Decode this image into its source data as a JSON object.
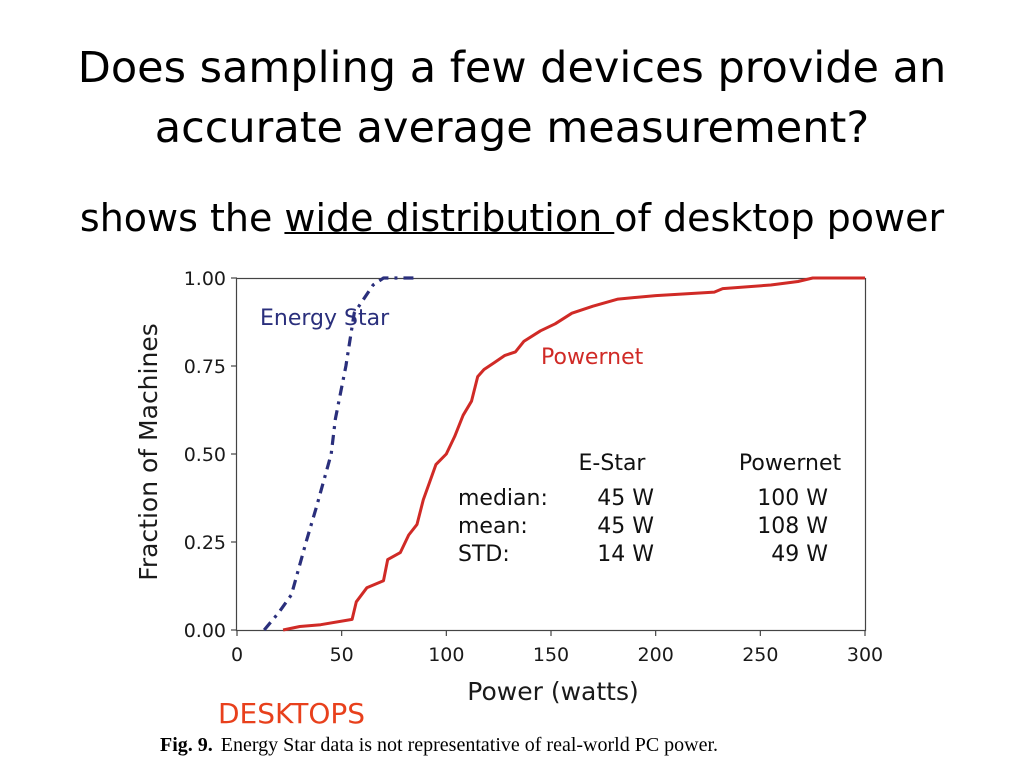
{
  "slide": {
    "title_line1": "Does sampling a few devices provide an",
    "title_line2": "accurate average measurement?",
    "subtitle_pre": "shows the ",
    "subtitle_underlined": "wide distribution ",
    "subtitle_post": "of desktop power",
    "section_label": "DESKTOPS",
    "caption_fig": "Fig. 9.",
    "caption_text": "Energy Star data is not representative of real-world PC power."
  },
  "colors": {
    "energy_star": "#2a2f7c",
    "powernet": "#d02a26",
    "section_label": "#e8401c"
  },
  "chart_data": {
    "type": "line",
    "xlabel": "Power (watts)",
    "ylabel": "Fraction of Machines",
    "xlim": [
      0,
      300
    ],
    "ylim": [
      0,
      1
    ],
    "x_ticks": [
      0,
      50,
      100,
      150,
      200,
      250,
      300
    ],
    "x_tick_labels": [
      "0",
      "50",
      "100",
      "150",
      "200",
      "250",
      "300"
    ],
    "y_ticks": [
      0,
      0.25,
      0.5,
      0.75,
      1.0
    ],
    "y_tick_labels": [
      "0.00",
      "0.25",
      "0.50",
      "0.75",
      "1.00"
    ],
    "grid": false,
    "series": [
      {
        "name": "Energy Star",
        "style": "dash-dot",
        "points": [
          [
            13,
            0
          ],
          [
            20,
            0.05
          ],
          [
            26,
            0.1
          ],
          [
            33,
            0.25
          ],
          [
            38,
            0.35
          ],
          [
            45,
            0.5
          ],
          [
            47,
            0.6
          ],
          [
            52,
            0.75
          ],
          [
            56,
            0.9
          ],
          [
            65,
            0.98
          ],
          [
            70,
            1.0
          ],
          [
            85,
            1.0
          ]
        ]
      },
      {
        "name": "Powernet",
        "style": "solid",
        "points": [
          [
            22,
            0
          ],
          [
            30,
            0.01
          ],
          [
            40,
            0.015
          ],
          [
            55,
            0.03
          ],
          [
            57,
            0.08
          ],
          [
            62,
            0.12
          ],
          [
            70,
            0.14
          ],
          [
            72,
            0.2
          ],
          [
            78,
            0.22
          ],
          [
            82,
            0.27
          ],
          [
            86,
            0.3
          ],
          [
            89,
            0.37
          ],
          [
            92,
            0.42
          ],
          [
            95,
            0.47
          ],
          [
            100,
            0.5
          ],
          [
            104,
            0.55
          ],
          [
            108,
            0.61
          ],
          [
            112,
            0.65
          ],
          [
            115,
            0.72
          ],
          [
            118,
            0.74
          ],
          [
            123,
            0.76
          ],
          [
            128,
            0.78
          ],
          [
            133,
            0.79
          ],
          [
            137,
            0.82
          ],
          [
            145,
            0.85
          ],
          [
            152,
            0.87
          ],
          [
            160,
            0.9
          ],
          [
            170,
            0.92
          ],
          [
            182,
            0.94
          ],
          [
            200,
            0.95
          ],
          [
            215,
            0.955
          ],
          [
            228,
            0.96
          ],
          [
            232,
            0.97
          ],
          [
            255,
            0.98
          ],
          [
            268,
            0.99
          ],
          [
            275,
            1.0
          ],
          [
            300,
            1.0
          ]
        ]
      }
    ],
    "annotations": {
      "energy_star_label": "Energy Star",
      "powernet_label": "Powernet",
      "stats_header": [
        "",
        "E-Star",
        "Powernet"
      ],
      "stats_rows": [
        [
          "median:",
          "45 W",
          "100 W"
        ],
        [
          "mean:",
          "45 W",
          "108 W"
        ],
        [
          "STD:",
          "14 W",
          "49 W"
        ]
      ]
    }
  }
}
